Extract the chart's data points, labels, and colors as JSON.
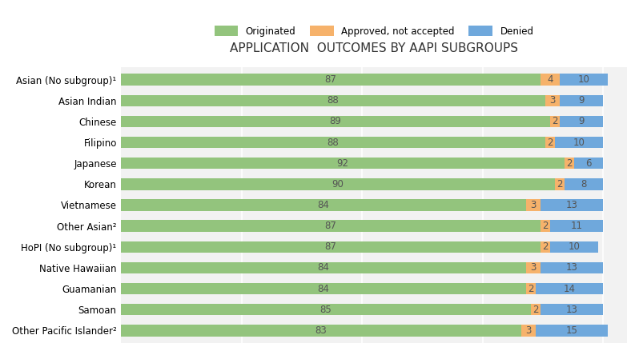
{
  "title": "APPLICATION  OUTCOMES BY AAPI SUBGROUPS",
  "categories": [
    "Asian (No subgroup)¹",
    "Asian Indian",
    "Chinese",
    "Filipino",
    "Japanese",
    "Korean",
    "Vietnamese",
    "Other Asian²",
    "HoPI (No subgroup)¹",
    "Native Hawaiian",
    "Guamanian",
    "Samoan",
    "Other Pacific Islander²"
  ],
  "originated": [
    87,
    88,
    89,
    88,
    92,
    90,
    84,
    87,
    87,
    84,
    84,
    85,
    83
  ],
  "approved_not_accepted": [
    4,
    3,
    2,
    2,
    2,
    2,
    3,
    2,
    2,
    3,
    2,
    2,
    3
  ],
  "denied": [
    10,
    9,
    9,
    10,
    6,
    8,
    13,
    11,
    10,
    13,
    14,
    13,
    15
  ],
  "color_originated": "#93c47d",
  "color_approved": "#f6b26b",
  "color_denied": "#6fa8dc",
  "legend_labels": [
    "Originated",
    "Approved, not accepted",
    "Denied"
  ],
  "background_color": "#ffffff",
  "ax_background": "#f2f2f2",
  "bar_height": 0.55,
  "title_fontsize": 11,
  "label_fontsize": 8.5
}
